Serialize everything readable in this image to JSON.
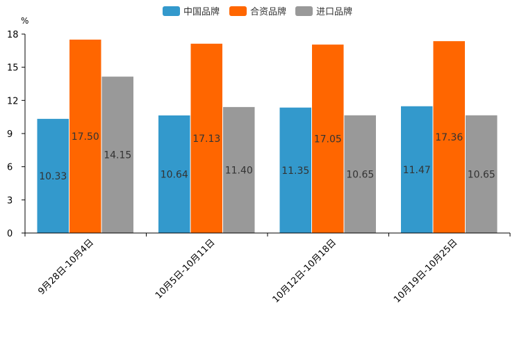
{
  "chart_data": {
    "type": "bar",
    "title": "",
    "unit_label": "%",
    "xlabel": "",
    "ylabel": "%",
    "ylim": [
      0,
      18
    ],
    "yticks": [
      0,
      3,
      6,
      9,
      12,
      15,
      18
    ],
    "grid": false,
    "legend_position": "top-center",
    "categories": [
      "9月28日-10月4日",
      "10月5日-10月11日",
      "10月12日-10月18日",
      "10月19日-10月25日"
    ],
    "series": [
      {
        "name": "中国品牌",
        "color": "#3399cc",
        "values": [
          10.33,
          10.64,
          11.35,
          11.47
        ]
      },
      {
        "name": "合资品牌",
        "color": "#ff6600",
        "values": [
          17.5,
          17.13,
          17.05,
          17.36
        ]
      },
      {
        "name": "进口品牌",
        "color": "#999999",
        "values": [
          14.15,
          11.4,
          10.65,
          10.65
        ]
      }
    ]
  }
}
